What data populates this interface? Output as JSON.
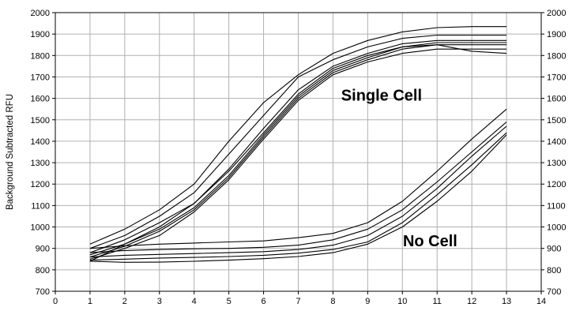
{
  "chart_data": {
    "type": "line",
    "ylabel": "Background Subtracted RFU",
    "xlabel": "",
    "xlim": [
      0,
      14
    ],
    "ylim": [
      700,
      2000
    ],
    "x_ticks": [
      0,
      1,
      2,
      3,
      4,
      5,
      6,
      7,
      8,
      9,
      10,
      11,
      12,
      13,
      14
    ],
    "y_ticks": [
      700,
      800,
      900,
      1000,
      1100,
      1200,
      1300,
      1400,
      1500,
      1600,
      1700,
      1800,
      1900,
      2000
    ],
    "grid": true,
    "right_axis": true,
    "annotations": [
      {
        "text": "Single Cell",
        "x": 9.4,
        "y": 1590
      },
      {
        "text": "No Cell",
        "x": 10.8,
        "y": 910
      }
    ],
    "x": [
      1,
      2,
      3,
      4,
      5,
      6,
      7,
      8,
      9,
      10,
      11,
      12,
      13
    ],
    "series": [
      {
        "group": "Single Cell",
        "values": [
          920,
          990,
          1080,
          1200,
          1400,
          1580,
          1710,
          1810,
          1870,
          1910,
          1930,
          1935,
          1935
        ]
      },
      {
        "group": "Single Cell",
        "values": [
          900,
          960,
          1050,
          1160,
          1340,
          1520,
          1700,
          1780,
          1840,
          1880,
          1895,
          1895,
          1895
        ]
      },
      {
        "group": "Single Cell",
        "values": [
          880,
          940,
          1020,
          1110,
          1270,
          1460,
          1640,
          1750,
          1810,
          1855,
          1870,
          1870,
          1870
        ]
      },
      {
        "group": "Single Cell",
        "values": [
          870,
          920,
          990,
          1090,
          1240,
          1430,
          1610,
          1730,
          1790,
          1840,
          1860,
          1860,
          1860
        ]
      },
      {
        "group": "Single Cell",
        "values": [
          860,
          910,
          980,
          1080,
          1230,
          1420,
          1600,
          1720,
          1780,
          1830,
          1850,
          1850,
          1850
        ]
      },
      {
        "group": "Single Cell",
        "values": [
          850,
          900,
          960,
          1070,
          1220,
          1410,
          1590,
          1710,
          1770,
          1810,
          1830,
          1830,
          1830
        ]
      },
      {
        "group": "Single Cell",
        "values": [
          840,
          920,
          1000,
          1110,
          1260,
          1440,
          1620,
          1740,
          1800,
          1840,
          1850,
          1820,
          1810
        ]
      },
      {
        "group": "No Cell",
        "values": [
          900,
          912,
          920,
          925,
          930,
          935,
          950,
          970,
          1020,
          1120,
          1260,
          1410,
          1550
        ]
      },
      {
        "group": "No Cell",
        "values": [
          880,
          890,
          895,
          898,
          900,
          905,
          915,
          940,
          990,
          1080,
          1210,
          1350,
          1490
        ]
      },
      {
        "group": "No Cell",
        "values": [
          860,
          868,
          872,
          876,
          880,
          885,
          895,
          915,
          960,
          1050,
          1180,
          1330,
          1470
        ]
      },
      {
        "group": "No Cell",
        "values": [
          845,
          850,
          855,
          858,
          862,
          868,
          878,
          895,
          930,
          1020,
          1150,
          1290,
          1440
        ]
      },
      {
        "group": "No Cell",
        "values": [
          840,
          835,
          836,
          840,
          845,
          852,
          862,
          880,
          920,
          1000,
          1120,
          1260,
          1430
        ]
      }
    ]
  }
}
